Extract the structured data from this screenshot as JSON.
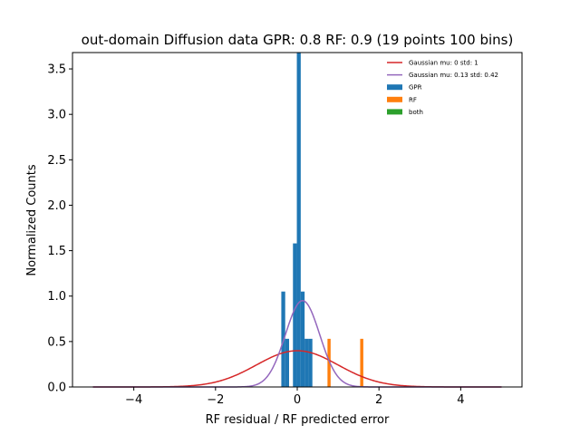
{
  "chart_data": {
    "type": "bar",
    "title": "out-domain Diffusion data GPR: 0.8 RF: 0.9 (19 points 100 bins)",
    "xlabel": "RF residual / RF predicted error",
    "ylabel": "Normalized Counts",
    "xlim": [
      -5.5,
      5.5
    ],
    "ylim": [
      0,
      3.68
    ],
    "xticks": [
      -4,
      -2,
      0,
      2,
      4
    ],
    "xtick_labels": [
      "−4",
      "−2",
      "0",
      "2",
      "4"
    ],
    "yticks": [
      0,
      0.5,
      1.0,
      1.5,
      2.0,
      2.5,
      3.0,
      3.5
    ],
    "ytick_labels": [
      "0.0",
      "0.5",
      "1.0",
      "1.5",
      "2.0",
      "2.5",
      "3.0",
      "3.5"
    ],
    "grid": false,
    "legend_position": "top-right",
    "histograms": [
      {
        "name": "GPR",
        "color": "#1f77b4",
        "bin_width": 0.0953,
        "bins": [
          {
            "x0": -0.39,
            "height": 1.05
          },
          {
            "x0": -0.295,
            "height": 0.53
          },
          {
            "x0": -0.105,
            "height": 1.58
          },
          {
            "x0": -0.01,
            "height": 3.68
          },
          {
            "x0": 0.085,
            "height": 1.05
          },
          {
            "x0": 0.18,
            "height": 0.53
          },
          {
            "x0": 0.275,
            "height": 0.53
          }
        ]
      },
      {
        "name": "RF",
        "color": "#ff7f0e",
        "bin_width": 0.0767,
        "bins": [
          {
            "x0": 0.74,
            "height": 0.53
          },
          {
            "x0": 1.54,
            "height": 0.53
          }
        ]
      },
      {
        "name": "both",
        "color": "#2ca02c",
        "bin_width": 0.08,
        "bins": []
      }
    ],
    "curves": [
      {
        "name": "Gaussian mu: 0 std: 1",
        "color": "#d62728",
        "mu": 0,
        "std": 1,
        "x_range": [
          -5,
          5
        ]
      },
      {
        "name": "Gaussian mu: 0.13 std: 0.42",
        "color": "#9467bd",
        "mu": 0.13,
        "std": 0.42,
        "x_range": [
          -5,
          5
        ]
      }
    ]
  }
}
